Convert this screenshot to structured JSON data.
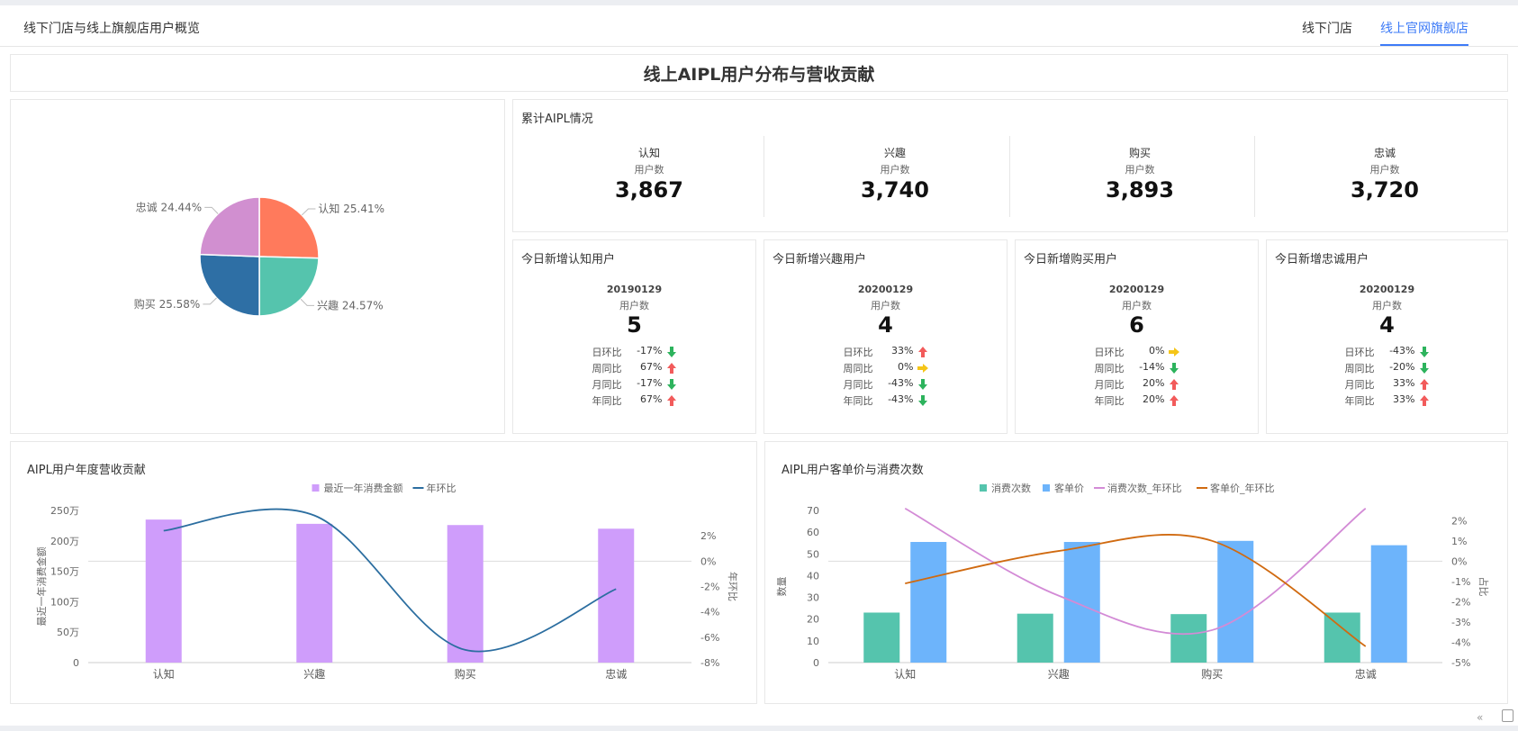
{
  "header": {
    "title": "线下门店与线上旗舰店用户概览",
    "tabs": [
      {
        "label": "线下门店",
        "active": false
      },
      {
        "label": "线上官网旗舰店",
        "active": true
      }
    ]
  },
  "banner": {
    "title": "线上AIPL用户分布与营收贡献"
  },
  "pie": {
    "slices": [
      {
        "label": "认知 25.41%",
        "value": 25.41,
        "color": "#ff7a5c"
      },
      {
        "label": "兴趣 24.57%",
        "value": 24.57,
        "color": "#55c4ad"
      },
      {
        "label": "购买 25.58%",
        "value": 25.58,
        "color": "#2e6fa5"
      },
      {
        "label": "忠诚 24.44%",
        "value": 24.44,
        "color": "#d18fd0"
      }
    ]
  },
  "cumulative": {
    "title": "累计AIPL情况",
    "items": [
      {
        "name": "认知",
        "sub": "用户数",
        "value": "3,867"
      },
      {
        "name": "兴趣",
        "sub": "用户数",
        "value": "3,740"
      },
      {
        "name": "购买",
        "sub": "用户数",
        "value": "3,893"
      },
      {
        "name": "忠诚",
        "sub": "用户数",
        "value": "3,720"
      }
    ]
  },
  "today": [
    {
      "title": "今日新增认知用户",
      "date": "20190129",
      "sub": "用户数",
      "value": "5",
      "rows": [
        {
          "label": "日环比",
          "pct": "-17%",
          "dir": "down"
        },
        {
          "label": "周同比",
          "pct": "67%",
          "dir": "up"
        },
        {
          "label": "月同比",
          "pct": "-17%",
          "dir": "down"
        },
        {
          "label": "年同比",
          "pct": "67%",
          "dir": "up"
        }
      ]
    },
    {
      "title": "今日新增兴趣用户",
      "date": "20200129",
      "sub": "用户数",
      "value": "4",
      "rows": [
        {
          "label": "日环比",
          "pct": "33%",
          "dir": "up"
        },
        {
          "label": "周同比",
          "pct": "0%",
          "dir": "flat"
        },
        {
          "label": "月同比",
          "pct": "-43%",
          "dir": "down"
        },
        {
          "label": "年同比",
          "pct": "-43%",
          "dir": "down"
        }
      ]
    },
    {
      "title": "今日新增购买用户",
      "date": "20200129",
      "sub": "用户数",
      "value": "6",
      "rows": [
        {
          "label": "日环比",
          "pct": "0%",
          "dir": "flat"
        },
        {
          "label": "周同比",
          "pct": "-14%",
          "dir": "down"
        },
        {
          "label": "月同比",
          "pct": "20%",
          "dir": "up"
        },
        {
          "label": "年同比",
          "pct": "20%",
          "dir": "up"
        }
      ]
    },
    {
      "title": "今日新增忠诚用户",
      "date": "20200129",
      "sub": "用户数",
      "value": "4",
      "rows": [
        {
          "label": "日环比",
          "pct": "-43%",
          "dir": "down"
        },
        {
          "label": "周同比",
          "pct": "-20%",
          "dir": "down"
        },
        {
          "label": "月同比",
          "pct": "33%",
          "dir": "up"
        },
        {
          "label": "年同比",
          "pct": "33%",
          "dir": "up"
        }
      ]
    }
  ],
  "arrow_colors": {
    "up": "#f25b5b",
    "down": "#2db35d",
    "flat": "#f5c518"
  },
  "chart_data": [
    {
      "type": "bar",
      "title": "AIPL用户年度营收贡献",
      "categories": [
        "认知",
        "兴趣",
        "购买",
        "忠诚"
      ],
      "series": [
        {
          "name": "最近一年消费金额",
          "type": "bar",
          "axis": "left",
          "color": "#cf9dfb",
          "values": [
            2350000,
            2280000,
            2260000,
            2200000
          ]
        },
        {
          "name": "年环比",
          "type": "line",
          "axis": "right",
          "color": "#2c6ea0",
          "values": [
            2.4,
            3.6,
            -7.0,
            -2.2
          ]
        }
      ],
      "ylabel": "最近一年消费金额",
      "y2label": "年环比",
      "ylim": [
        0,
        2500000
      ],
      "y2lim": [
        -8,
        4
      ],
      "yticks": [
        "0",
        "50万",
        "100万",
        "150万",
        "200万",
        "250万"
      ],
      "y2ticks": [
        "-8%",
        "-6%",
        "-4%",
        "-2%",
        "0%",
        "2%"
      ],
      "legend": "top-center"
    },
    {
      "type": "bar",
      "title": "AIPL用户客单价与消费次数",
      "categories": [
        "认知",
        "兴趣",
        "购买",
        "忠诚"
      ],
      "series": [
        {
          "name": "消费次数",
          "type": "bar",
          "axis": "left",
          "color": "#55c4ad",
          "values": [
            23,
            22.5,
            22.3,
            23
          ]
        },
        {
          "name": "客单价",
          "type": "bar",
          "axis": "left",
          "color": "#6db4fb",
          "values": [
            55.5,
            55.5,
            56,
            54
          ]
        },
        {
          "name": "消费次数_年环比",
          "type": "line",
          "axis": "right",
          "color": "#d38bd6",
          "values": [
            2.6,
            -1.7,
            -3.4,
            2.6
          ]
        },
        {
          "name": "客单价_年环比",
          "type": "line",
          "axis": "right",
          "color": "#d06a10",
          "values": [
            -1.1,
            0.5,
            1.0,
            -4.2
          ]
        }
      ],
      "ylabel": "数量",
      "y2label": "占比",
      "ylim": [
        0,
        70
      ],
      "y2lim": [
        -5,
        2.5
      ],
      "yticks": [
        "0",
        "10",
        "20",
        "30",
        "40",
        "50",
        "60",
        "70"
      ],
      "y2ticks": [
        "-5%",
        "-4%",
        "-3%",
        "-2%",
        "-1%",
        "0%",
        "1%",
        "2%"
      ],
      "legend": "top-center"
    }
  ],
  "footer": {
    "collapse_icon": "«"
  }
}
